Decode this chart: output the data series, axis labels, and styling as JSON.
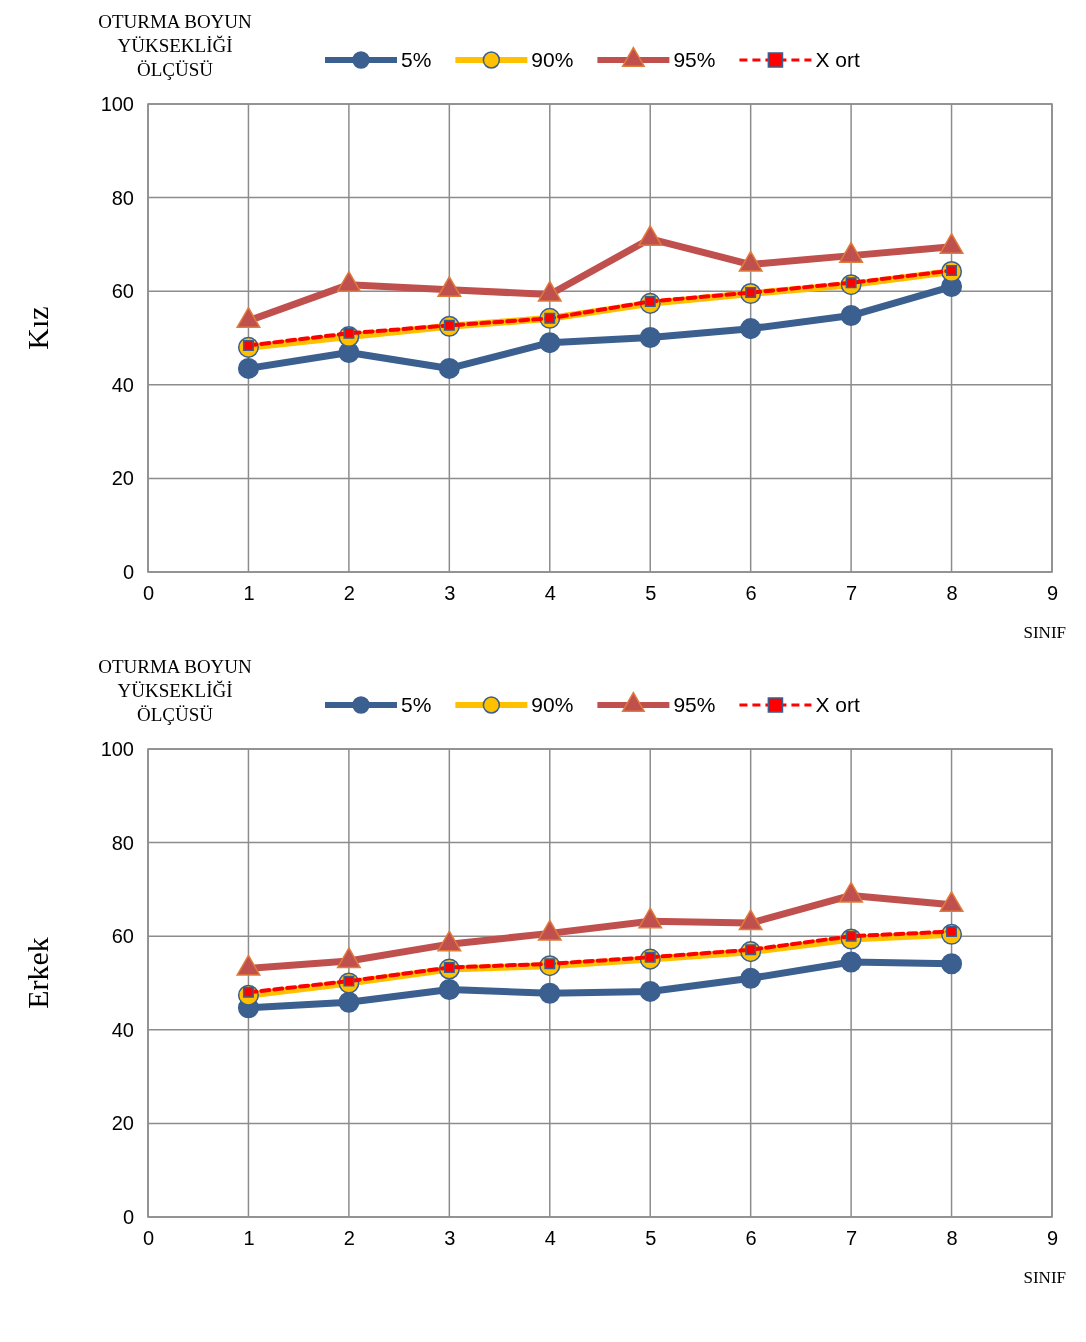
{
  "chart_data": [
    {
      "type": "line",
      "title": "OTURMA BOYUN\nYÜKSEKLİĞİ\nÖLÇÜSÜ",
      "ylabel": "Kız",
      "xlabel": "SINIF",
      "x": [
        1,
        2,
        3,
        4,
        5,
        6,
        7,
        8
      ],
      "xlim": [
        0,
        9
      ],
      "xticks": [
        0,
        1,
        2,
        3,
        4,
        5,
        6,
        7,
        8,
        9
      ],
      "ylim": [
        0,
        100
      ],
      "yticks": [
        0,
        20,
        40,
        60,
        80,
        100
      ],
      "grid": true,
      "legend": "top",
      "series": [
        {
          "name": "5%",
          "color": "#3b5f8f",
          "marker": "circle",
          "line_style": "solid",
          "values": [
            43.5,
            46.9,
            43.5,
            49,
            50.1,
            52,
            54.8,
            61
          ]
        },
        {
          "name": "90%",
          "color": "#ffc000",
          "marker": "circle",
          "line_style": "solid",
          "values": [
            48,
            50.3,
            52.5,
            54.2,
            57.4,
            59.5,
            61.4,
            64.2
          ]
        },
        {
          "name": "95%",
          "color": "#c0504d",
          "marker": "triangle",
          "line_style": "solid",
          "values": [
            53.7,
            61.4,
            60.3,
            59.3,
            71.2,
            65.7,
            67.6,
            69.5
          ]
        },
        {
          "name": "X ort",
          "color": "#ff0000",
          "marker": "square",
          "line_style": "dashed",
          "values": [
            48.4,
            51,
            52.7,
            54.2,
            57.8,
            59.7,
            61.8,
            64.4
          ]
        }
      ]
    },
    {
      "type": "line",
      "title": "OTURMA BOYUN\nYÜKSEKLİĞİ\nÖLÇÜSÜ",
      "ylabel": "Erkek",
      "xlabel": "SINIF",
      "x": [
        1,
        2,
        3,
        4,
        5,
        6,
        7,
        8
      ],
      "xlim": [
        0,
        9
      ],
      "xticks": [
        0,
        1,
        2,
        3,
        4,
        5,
        6,
        7,
        8,
        9
      ],
      "ylim": [
        0,
        100
      ],
      "yticks": [
        0,
        20,
        40,
        60,
        80,
        100
      ],
      "grid": true,
      "legend": "top",
      "series": [
        {
          "name": "5%",
          "color": "#3b5f8f",
          "marker": "circle",
          "line_style": "solid",
          "values": [
            44.7,
            45.9,
            48.6,
            47.8,
            48.2,
            51,
            54.5,
            54.1
          ]
        },
        {
          "name": "90%",
          "color": "#ffc000",
          "marker": "circle",
          "line_style": "solid",
          "values": [
            47.4,
            50,
            53,
            53.7,
            55.1,
            56.7,
            59.4,
            60.4
          ]
        },
        {
          "name": "95%",
          "color": "#c0504d",
          "marker": "triangle",
          "line_style": "solid",
          "values": [
            53.1,
            54.7,
            58.3,
            60.6,
            63.2,
            62.8,
            68.7,
            66.7
          ]
        },
        {
          "name": "X ort",
          "color": "#ff0000",
          "marker": "square",
          "line_style": "dashed",
          "values": [
            48,
            50.4,
            53.3,
            54.1,
            55.5,
            57.1,
            60,
            61
          ]
        }
      ]
    }
  ]
}
